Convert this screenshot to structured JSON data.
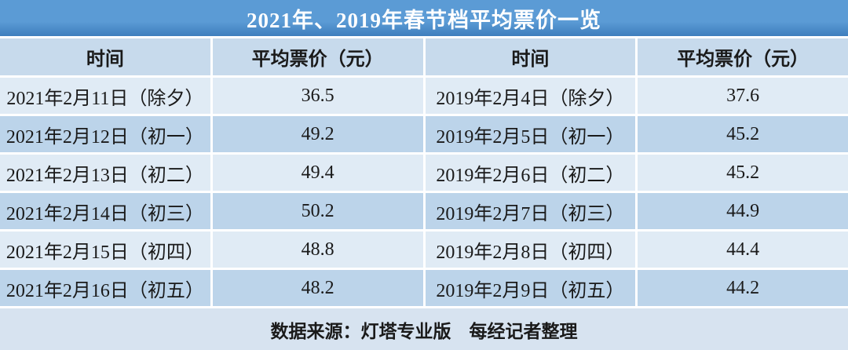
{
  "title": "2021年、2019年春节档平均票价一览",
  "table": {
    "headers": [
      "时间",
      "平均票价（元）",
      "时间",
      "平均票价（元）"
    ],
    "rows": [
      [
        "2021年2月11日（除夕）",
        "36.5",
        "2019年2月4日（除夕）",
        "37.6"
      ],
      [
        "2021年2月12日（初一）",
        "49.2",
        "2019年2月5日（初一）",
        "45.2"
      ],
      [
        "2021年2月13日（初二）",
        "49.4",
        "2019年2月6日（初二）",
        "45.2"
      ],
      [
        "2021年2月14日（初三）",
        "50.2",
        "2019年2月7日（初三）",
        "44.9"
      ],
      [
        "2021年2月15日（初四）",
        "48.8",
        "2019年2月8日（初四）",
        "44.4"
      ],
      [
        "2021年2月16日（初五）",
        "48.2",
        "2019年2月9日（初五）",
        "44.2"
      ]
    ]
  },
  "footer": "数据来源：灯塔专业版　每经记者整理",
  "colors": {
    "title_bg_top": "#5B9BD5",
    "title_bg_bottom": "#3E7EBD",
    "title_text": "#FFFFFF",
    "header_bg": "#C7DAEC",
    "row_light": "#E0EBF5",
    "row_blue": "#BCD4EA",
    "footer_bg": "#D7E3F0",
    "text": "#1A1A1A"
  },
  "chart_data": {
    "type": "table",
    "title": "2021年、2019年春节档平均票价一览",
    "columns": [
      "时间",
      "平均票价（元）",
      "时间",
      "平均票价（元）"
    ],
    "series": [
      {
        "name": "2021年春节档",
        "dates": [
          "2021年2月11日（除夕）",
          "2021年2月12日（初一）",
          "2021年2月13日（初二）",
          "2021年2月14日（初三）",
          "2021年2月15日（初四）",
          "2021年2月16日（初五）"
        ],
        "values": [
          36.5,
          49.2,
          49.4,
          50.2,
          48.8,
          48.2
        ]
      },
      {
        "name": "2019年春节档",
        "dates": [
          "2019年2月4日（除夕）",
          "2019年2月5日（初一）",
          "2019年2月6日（初二）",
          "2019年2月7日（初三）",
          "2019年2月8日（初四）",
          "2019年2月9日（初五）"
        ],
        "values": [
          37.6,
          45.2,
          45.2,
          44.9,
          44.4,
          44.2
        ]
      }
    ],
    "unit": "元",
    "source_note": "数据来源：灯塔专业版　每经记者整理"
  }
}
